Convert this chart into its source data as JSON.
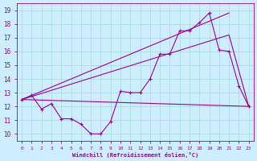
{
  "xlabel": "Windchill (Refroidissement éolien,°C)",
  "bg_color": "#cceeff",
  "line_color": "#990099",
  "grid_color": "#aadddd",
  "xlim": [
    -0.5,
    23.5
  ],
  "ylim": [
    9.5,
    19.5
  ],
  "yticks": [
    10,
    11,
    12,
    13,
    14,
    15,
    16,
    17,
    18,
    19
  ],
  "xticks": [
    0,
    1,
    2,
    3,
    4,
    5,
    6,
    7,
    8,
    9,
    10,
    11,
    12,
    13,
    14,
    15,
    16,
    17,
    18,
    19,
    20,
    21,
    22,
    23
  ],
  "line1_x": [
    0,
    1,
    2,
    3,
    4,
    5,
    6,
    7,
    8,
    9,
    10,
    11,
    12,
    13,
    14,
    15,
    16,
    17,
    18,
    19,
    20,
    21,
    22,
    23
  ],
  "line1_y": [
    12.5,
    12.8,
    11.8,
    12.2,
    11.1,
    11.1,
    10.7,
    10.0,
    10.0,
    10.9,
    13.1,
    13.0,
    13.0,
    14.0,
    15.8,
    15.8,
    17.5,
    17.5,
    18.1,
    18.8,
    16.1,
    16.0,
    13.5,
    12.0
  ],
  "line2_x": [
    0,
    23
  ],
  "line2_y": [
    12.5,
    12.0
  ],
  "line3_x": [
    0,
    21,
    23
  ],
  "line3_y": [
    12.5,
    17.2,
    12.0
  ],
  "line4_x": [
    0,
    21
  ],
  "line4_y": [
    12.5,
    18.8
  ]
}
